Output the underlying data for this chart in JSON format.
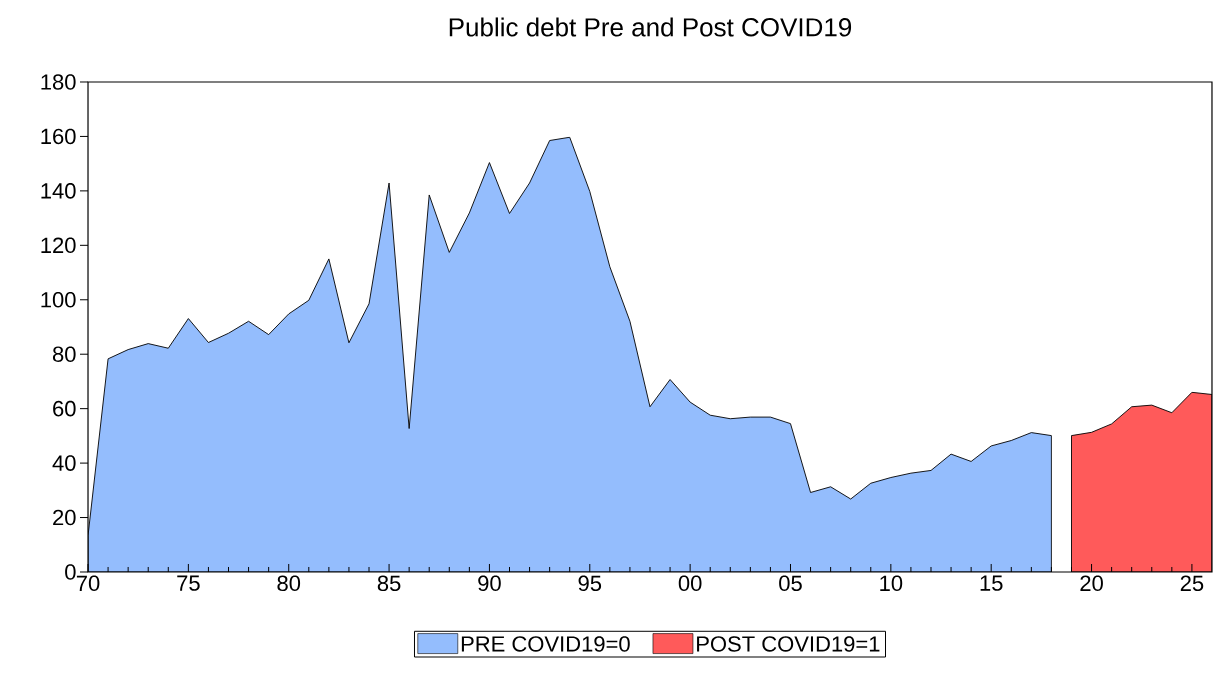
{
  "chart_data": {
    "type": "area",
    "title": "Public debt Pre and Post COVID19",
    "xlim": [
      1970,
      2026
    ],
    "ylim": [
      0,
      180
    ],
    "xticks": [
      {
        "value": 1970,
        "label": "70"
      },
      {
        "value": 1975,
        "label": "75"
      },
      {
        "value": 1980,
        "label": "80"
      },
      {
        "value": 1985,
        "label": "85"
      },
      {
        "value": 1990,
        "label": "90"
      },
      {
        "value": 1995,
        "label": "95"
      },
      {
        "value": 2000,
        "label": "00"
      },
      {
        "value": 2005,
        "label": "05"
      },
      {
        "value": 2010,
        "label": "10"
      },
      {
        "value": 2015,
        "label": "15"
      },
      {
        "value": 2020,
        "label": "20"
      },
      {
        "value": 2025,
        "label": "25"
      }
    ],
    "yticks": [
      0,
      20,
      40,
      60,
      80,
      100,
      120,
      140,
      160,
      180
    ],
    "grid": false,
    "legend": "bottom",
    "series": [
      {
        "name": "PRE COVID19=0",
        "color": "#94bdfd",
        "x": [
          1970,
          1971,
          1972,
          1973,
          1974,
          1975,
          1976,
          1977,
          1978,
          1979,
          1980,
          1981,
          1982,
          1983,
          1984,
          1985,
          1986,
          1987,
          1988,
          1989,
          1990,
          1991,
          1992,
          1993,
          1994,
          1995,
          1996,
          1997,
          1998,
          1999,
          2000,
          2001,
          2002,
          2003,
          2004,
          2005,
          2006,
          2007,
          2008,
          2009,
          2010,
          2011,
          2012,
          2013,
          2014,
          2015,
          2016,
          2017,
          2018
        ],
        "values": [
          13.3,
          78.3,
          81.7,
          83.9,
          82.2,
          93.1,
          84.3,
          87.7,
          92.1,
          87.2,
          94.8,
          99.8,
          115.0,
          84.2,
          98.5,
          142.9,
          52.7,
          138.5,
          117.4,
          131.9,
          150.4,
          131.7,
          142.9,
          158.5,
          159.7,
          139.8,
          112.1,
          92.1,
          60.7,
          70.7,
          62.4,
          57.6,
          56.3,
          56.9,
          56.9,
          54.5,
          29.2,
          31.3,
          26.8,
          32.6,
          34.7,
          36.3,
          37.3,
          43.3,
          40.6,
          46.3,
          48.3,
          51.2,
          50.1
        ]
      },
      {
        "name": "POST COVID19=1",
        "color": "#ff5a5a",
        "x": [
          2019,
          2020,
          2021,
          2022,
          2023,
          2024,
          2025,
          2026
        ],
        "values": [
          50.1,
          51.3,
          54.4,
          60.7,
          61.3,
          58.5,
          66.0,
          65.2
        ]
      }
    ]
  }
}
